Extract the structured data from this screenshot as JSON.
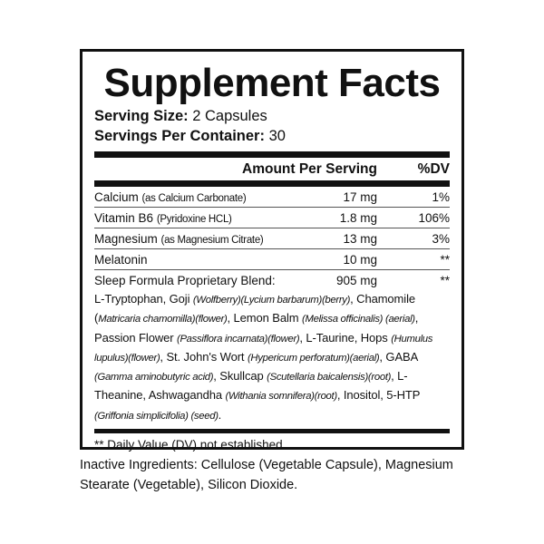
{
  "title": "Supplement Facts",
  "serving_size": {
    "label": "Serving Size:",
    "value": "2 Capsules"
  },
  "servings_per_container": {
    "label": "Servings Per Container:",
    "value": "30"
  },
  "header": {
    "amount": "Amount Per Serving",
    "dv": "%DV"
  },
  "rows": [
    {
      "name": "Calcium",
      "detail": "(as Calcium Carbonate)",
      "amount": "17 mg",
      "dv": "1%"
    },
    {
      "name": "Vitamin B6",
      "detail": "(Pyridoxine HCL)",
      "amount": "1.8 mg",
      "dv": "106%"
    },
    {
      "name": "Magnesium",
      "detail": "(as Magnesium Citrate)",
      "amount": "13 mg",
      "dv": "3%"
    },
    {
      "name": "Melatonin",
      "detail": "",
      "amount": "10 mg",
      "dv": "**"
    },
    {
      "name": "Sleep Formula Proprietary Blend:",
      "detail": "",
      "amount": "905 mg",
      "dv": "**"
    }
  ],
  "blend": [
    {
      "t": "L-Tryptophan, Goji "
    },
    {
      "i": "(Wolfberry)(Lycium barbarum)(berry)"
    },
    {
      "t": ","
    },
    {
      "t": " Chamomile ("
    },
    {
      "i": "Matricaria chamomilla)(flower)"
    },
    {
      "t": ", Lemon Balm "
    },
    {
      "i": "(Melissa officinalis) (aerial)"
    },
    {
      "t": ", Passion Flower "
    },
    {
      "i": "(Passiflora incarnata)(flower)"
    },
    {
      "t": ","
    },
    {
      "t": " L-Taurine, Hops "
    },
    {
      "i": "(Humulus lupulus)(flower)"
    },
    {
      "t": ", St. John's Wort "
    },
    {
      "i": "(Hypericum perforatum)(aerial)"
    },
    {
      "t": ", GABA "
    },
    {
      "i": "(Gamma aminobutyric acid)"
    },
    {
      "t": ","
    },
    {
      "t": " Skullcap "
    },
    {
      "i": "(Scutellaria baicalensis)(root)"
    },
    {
      "t": ", L-Theanine, Ashwagandha "
    },
    {
      "i": "(Withania somnifera)(root)"
    },
    {
      "t": ", Inositol, 5-HTP "
    },
    {
      "i": "(Griffonia simplicifolia) (seed)"
    },
    {
      "t": "."
    }
  ],
  "footnote": "** Daily Value (DV) not established",
  "inactive": "Inactive Ingredients: Cellulose (Vegetable Capsule), Magnesium Stearate (Vegetable), Silicon Dioxide."
}
